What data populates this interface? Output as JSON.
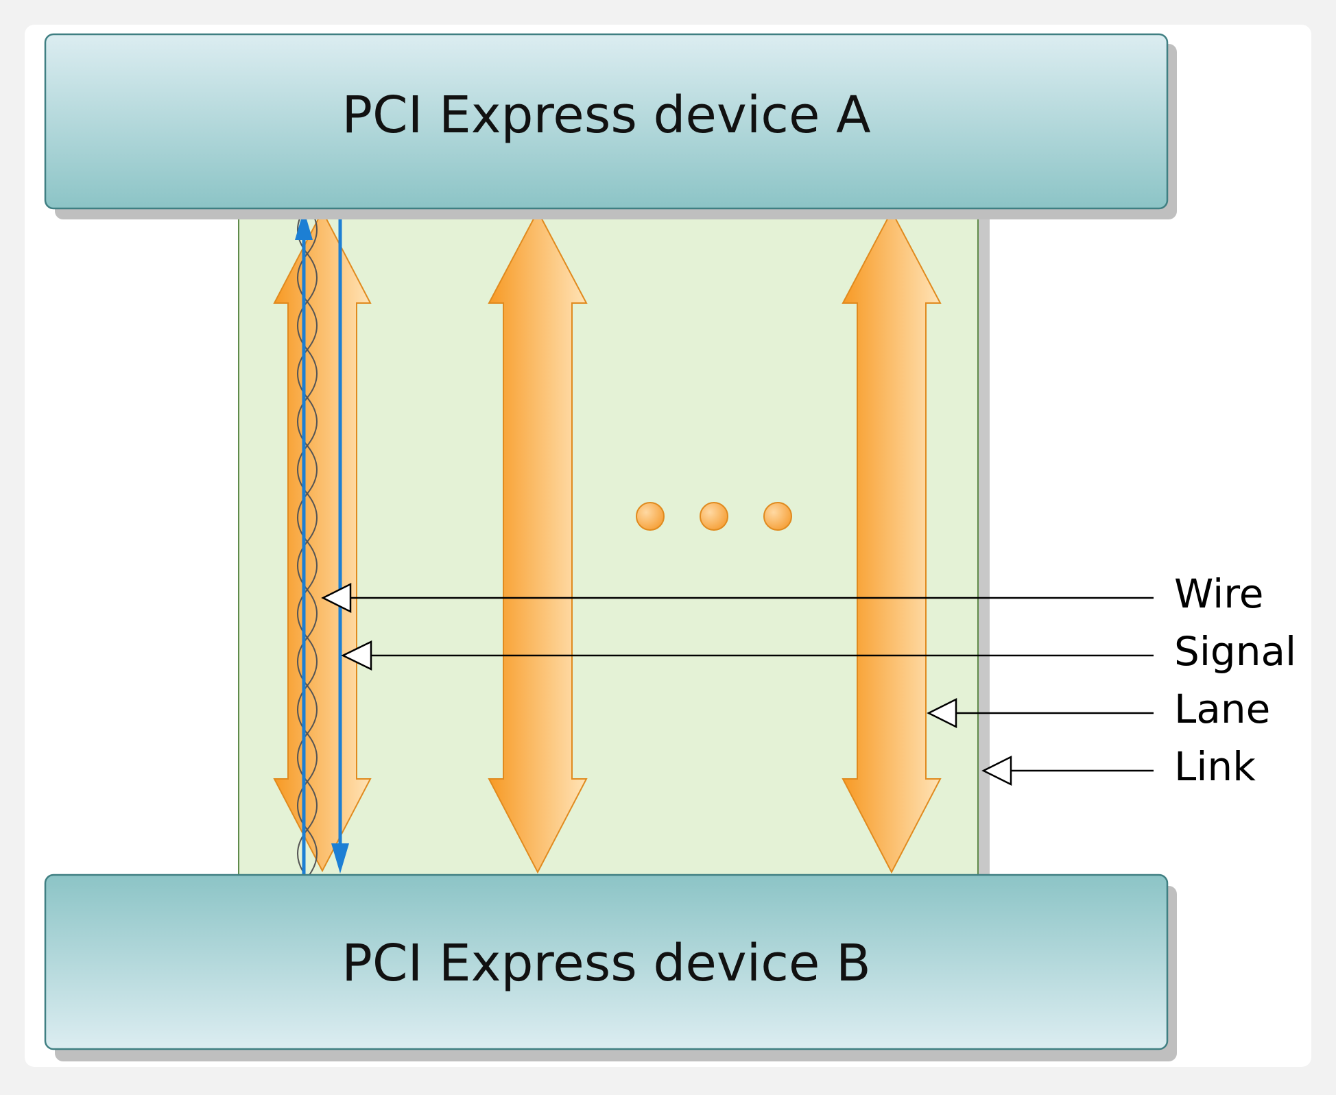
{
  "devices": {
    "top_label": "PCI Express device A",
    "bottom_label": "PCI Express device B"
  },
  "callouts": {
    "wire": "Wire",
    "signal": "Signal",
    "lane": "Lane",
    "link": "Link"
  },
  "colors": {
    "device_fill_light": "#dcecf0",
    "device_fill_dark": "#8ec6c8",
    "link_fill": "#e4f2d6",
    "lane_orange": "#f7a33a",
    "lane_orange_light": "#ffe0b0",
    "signal_blue": "#1c7fd4"
  },
  "lane_count_drawn": 3,
  "ellipsis_dots": 3
}
